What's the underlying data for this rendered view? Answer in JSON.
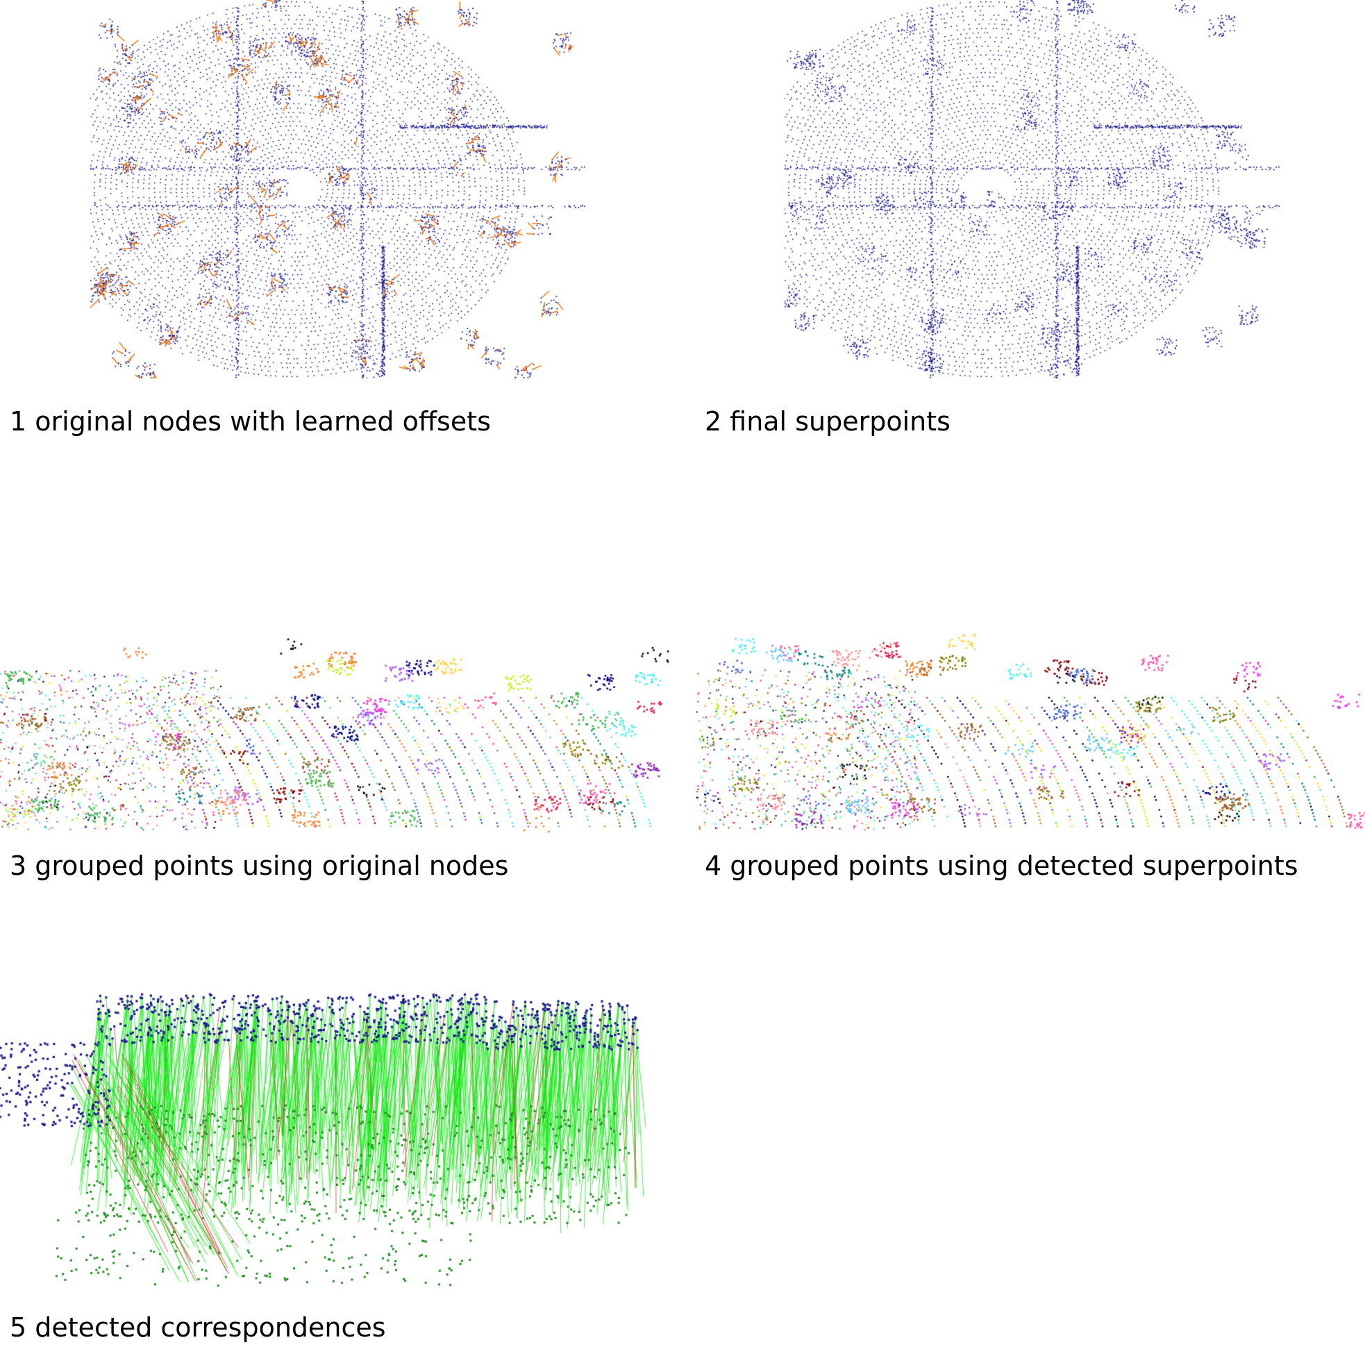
{
  "colors": {
    "node_blue": "#1a1a8c",
    "offset_orange": "#f07e1a",
    "corr_green": "#00e600",
    "corr_red": "#d21e1e",
    "target_green": "#1e8c1e",
    "palette": [
      "#e6194b",
      "#3cb44b",
      "#4363d8",
      "#f58231",
      "#911eb4",
      "#46f0f0",
      "#f032e6",
      "#bcf60c",
      "#008080",
      "#9a6324",
      "#800000",
      "#808000",
      "#000075",
      "#000000",
      "#ff4fa3",
      "#5ad6a0",
      "#a05aff",
      "#ffd23c",
      "#64c8ff",
      "#ff8c8c"
    ]
  },
  "panels": [
    {
      "id": "p1",
      "caption": "1 original nodes with learned offsets"
    },
    {
      "id": "p2",
      "caption": "2 final superpoints"
    },
    {
      "id": "p3",
      "caption": "3 grouped points using original nodes"
    },
    {
      "id": "p4",
      "caption": "4 grouped points using detected superpoints"
    },
    {
      "id": "p5",
      "caption": "5 detected correspondences"
    }
  ]
}
